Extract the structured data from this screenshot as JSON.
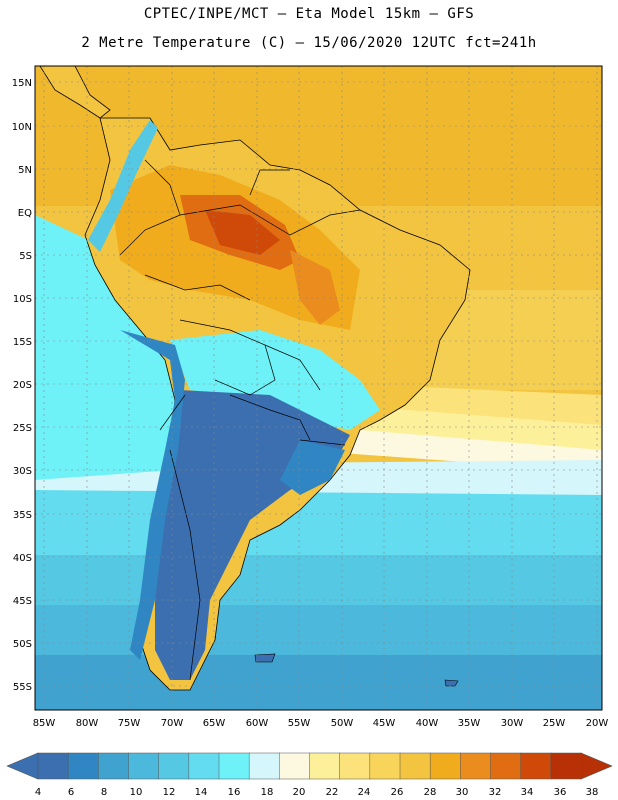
{
  "header": {
    "line1": "CPTEC/INPE/MCT –  Eta Model 15km – GFS",
    "line2": "2 Metre Temperature (C) – 15/06/2020 12UTC fct=241h"
  },
  "map": {
    "lat_labels": [
      "15N",
      "10N",
      "5N",
      "EQ",
      "5S",
      "10S",
      "15S",
      "20S",
      "25S",
      "30S",
      "35S",
      "40S",
      "45S",
      "50S",
      "55S"
    ],
    "lon_labels": [
      "85W",
      "80W",
      "75W",
      "70W",
      "65W",
      "60W",
      "55W",
      "50W",
      "45W",
      "40W",
      "35W",
      "30W",
      "25W",
      "20W"
    ]
  },
  "legend": {
    "values": [
      "4",
      "6",
      "8",
      "10",
      "12",
      "14",
      "16",
      "18",
      "20",
      "22",
      "24",
      "26",
      "28",
      "30",
      "32",
      "34",
      "36",
      "38"
    ],
    "colors": [
      "#3c6fb0",
      "#2f86c2",
      "#3fa2cf",
      "#4bb8dc",
      "#55c9e4",
      "#62dcee",
      "#6ef2f7",
      "#d5f6fb",
      "#fdf9e1",
      "#fdf09a",
      "#fce27a",
      "#f9d45a",
      "#f2c440",
      "#f0ac1c",
      "#ea8c1e",
      "#e06d12",
      "#cf4a08",
      "#b83005"
    ],
    "low_color": "#3c6fb0",
    "high_color": "#b83005"
  }
}
